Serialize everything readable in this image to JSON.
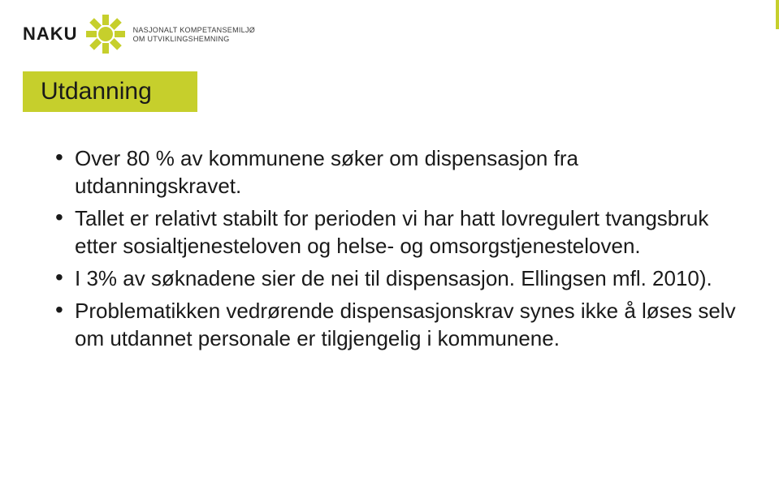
{
  "colors": {
    "accent": "#c6cf2c",
    "text": "#1a1a1a",
    "subtext": "#3a3a3a",
    "white": "#ffffff"
  },
  "typography": {
    "logo_fontsize": 22,
    "org_fontsize": 9,
    "title_fontsize": 30,
    "body_fontsize": 26,
    "body_lineheight": 34
  },
  "logo": {
    "brand": "NAKU",
    "org_line1": "NASJONALT KOMPETANSEMILJØ",
    "org_line2": "OM UTVIKLINGSHEMNING",
    "sun_rays": 8,
    "sun_color": "#c6cf2c",
    "stripe_height": 36
  },
  "title": {
    "text": "Utdanning",
    "bg": "#c6cf2c",
    "color": "#1a1a1a"
  },
  "bullets": {
    "items": [
      "Over 80 % av kommunene søker om dispensasjon fra utdanningskravet.",
      "Tallet er relativt stabilt for perioden vi har hatt lovregulert tvangsbruk etter sosialtjenesteloven og helse- og omsorgstjenesteloven.",
      "I 3% av søknadene sier de nei til dispensasjon. Ellingsen mfl. 2010).",
      "Problematikken vedrørende dispensasjonskrav synes ikke å løses selv om utdannet personale er tilgjengelig i kommunene."
    ]
  }
}
